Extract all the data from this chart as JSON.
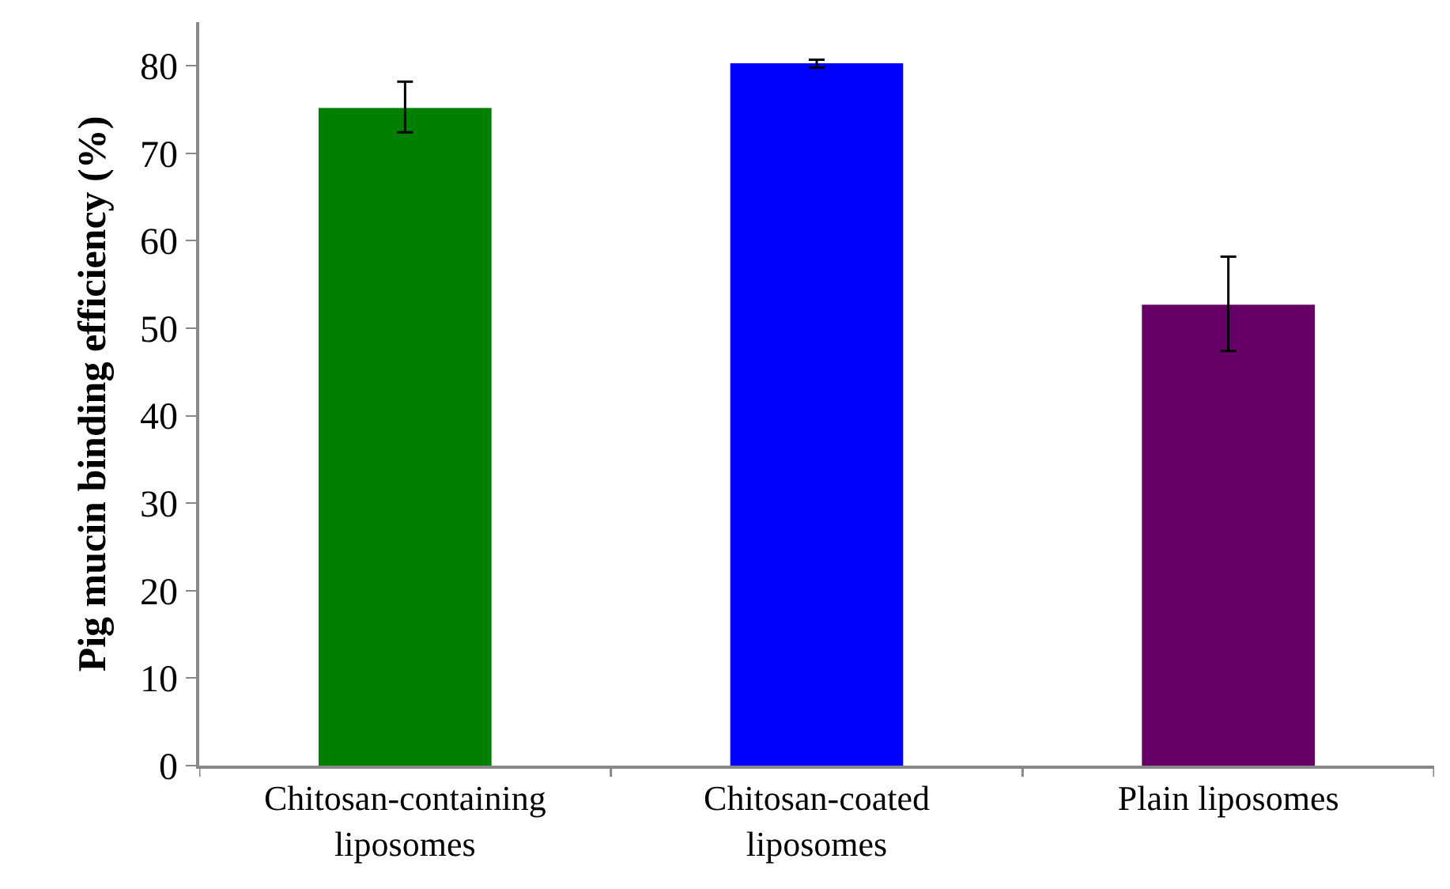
{
  "chart_data": {
    "type": "bar",
    "ylabel": "Pig mucin binding efficiency (%)",
    "categories": [
      "Chitosan-containing liposomes",
      "Chitosan-coated liposomes",
      "Plain liposomes"
    ],
    "values": [
      75.2,
      80.3,
      52.7
    ],
    "colors": [
      "#007f00",
      "#0000ff",
      "#660066"
    ],
    "errors": [
      [
        72.4,
        78.2
      ],
      [
        79.8,
        80.7
      ],
      [
        47.4,
        58.2
      ]
    ],
    "ylim": [
      0,
      85
    ],
    "yticks": [
      0,
      10,
      20,
      30,
      40,
      50,
      60,
      70,
      80
    ],
    "grid": false
  }
}
